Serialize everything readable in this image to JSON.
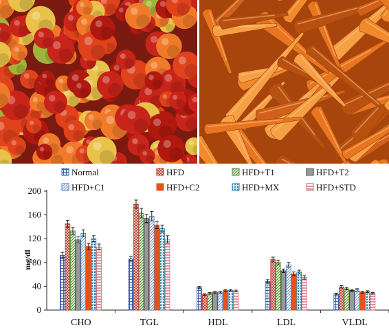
{
  "images": [
    {
      "subject": "tomatoes",
      "palette": [
        "#c8241a",
        "#e0421c",
        "#b01810",
        "#f07a2a",
        "#e8c24a",
        "#9fb43a"
      ]
    },
    {
      "subject": "carrots",
      "palette": [
        "#e8751f",
        "#f08a2c",
        "#d0601a",
        "#f6a045",
        "#b8500f"
      ]
    }
  ],
  "chart_data": {
    "type": "bar",
    "ylabel": "mg/dl",
    "ylim": [
      0,
      200
    ],
    "yticks": [
      0,
      40,
      80,
      120,
      160,
      200
    ],
    "categories": [
      "CHO",
      "TGL",
      "HDL",
      "LDL",
      "VLDL"
    ],
    "legend_position": "top",
    "series": [
      {
        "name": "Normal",
        "pattern": "grid",
        "color": "#3b5fa8",
        "values": [
          92,
          86,
          38,
          48,
          27
        ],
        "errors": [
          5,
          4,
          2,
          3,
          1.5
        ]
      },
      {
        "name": "HFD",
        "pattern": "cross",
        "color": "#c0392b",
        "values": [
          145,
          178,
          26,
          85,
          39
        ],
        "errors": [
          6,
          7,
          1.5,
          4,
          2
        ]
      },
      {
        "name": "HFD+T1",
        "pattern": "diag",
        "color": "#4a8a2a",
        "values": [
          133,
          163,
          28,
          80,
          36
        ],
        "errors": [
          6,
          8,
          1.5,
          4,
          2
        ]
      },
      {
        "name": "HFD+T2",
        "pattern": "hlines",
        "color": "#333333",
        "values": [
          118,
          154,
          30,
          66,
          33
        ],
        "errors": [
          5,
          7,
          1.5,
          3,
          1.5
        ]
      },
      {
        "name": "HFD+C1",
        "pattern": "wide-diag",
        "color": "#4a7fc0",
        "values": [
          129,
          158,
          30,
          76,
          34
        ],
        "errors": [
          6,
          8,
          1.5,
          4,
          2
        ]
      },
      {
        "name": "HFD+C2",
        "pattern": "solid",
        "color": "#e2541c",
        "values": [
          107,
          143,
          33,
          61,
          30
        ],
        "errors": [
          5,
          6,
          1.5,
          3,
          1.5
        ]
      },
      {
        "name": "HFD+MX",
        "pattern": "dots",
        "color": "#2f7fa5",
        "values": [
          120,
          137,
          33,
          64,
          31
        ],
        "errors": [
          5,
          6,
          1.5,
          3,
          1.5
        ]
      },
      {
        "name": "HFD+STD",
        "pattern": "hstripes",
        "color": "#d2646e",
        "values": [
          106,
          119,
          32,
          55,
          28
        ],
        "errors": [
          5,
          6,
          1.5,
          3,
          1.5
        ]
      }
    ]
  }
}
